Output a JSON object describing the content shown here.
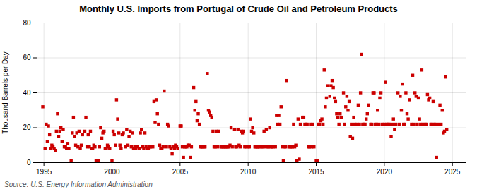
{
  "chart_data": {
    "type": "scatter",
    "title": "Monthly U.S. Imports from Portugal of Crude Oil and Petroleum Products",
    "ylabel": "Thousand Barrels per Day",
    "annotations": [
      "Source: U.S. Energy Information Administration"
    ],
    "color": "#cc0000",
    "marker": "square",
    "grid": true,
    "xlim": [
      1994.5,
      2026.0
    ],
    "ylim": [
      0,
      80
    ],
    "xticks": [
      1995,
      2000,
      2005,
      2010,
      2015,
      2020,
      2025
    ],
    "yticks": [
      0,
      20,
      40,
      60,
      80
    ],
    "x": [
      1994.917,
      1995.083,
      1995.167,
      1995.25,
      1995.333,
      1995.417,
      1995.5,
      1995.583,
      1995.667,
      1995.75,
      1995.833,
      1995.917,
      1996.0,
      1996.083,
      1996.167,
      1996.25,
      1996.333,
      1996.417,
      1996.5,
      1996.583,
      1996.667,
      1996.75,
      1996.833,
      1997.0,
      1997.083,
      1997.167,
      1997.25,
      1997.333,
      1997.417,
      1997.5,
      1997.583,
      1997.667,
      1997.75,
      1997.833,
      1998.0,
      1998.083,
      1998.167,
      1998.25,
      1998.333,
      1998.417,
      1998.5,
      1998.583,
      1998.667,
      1998.75,
      1998.833,
      1999.0,
      1999.083,
      1999.167,
      1999.25,
      1999.333,
      1999.417,
      1999.5,
      1999.583,
      1999.667,
      1999.75,
      1999.833,
      2000.0,
      2000.083,
      2000.167,
      2000.25,
      2000.333,
      2000.417,
      2000.5,
      2000.583,
      2000.667,
      2000.75,
      2000.833,
      2001.0,
      2001.083,
      2001.167,
      2001.25,
      2001.333,
      2001.417,
      2001.5,
      2001.583,
      2001.667,
      2001.75,
      2001.833,
      2002.0,
      2002.083,
      2002.167,
      2002.25,
      2002.333,
      2002.417,
      2002.5,
      2002.583,
      2002.667,
      2002.75,
      2002.833,
      2003.0,
      2003.083,
      2003.167,
      2003.25,
      2003.333,
      2003.417,
      2003.5,
      2003.583,
      2003.667,
      2003.75,
      2003.833,
      2004.0,
      2004.083,
      2004.167,
      2004.25,
      2004.333,
      2004.417,
      2004.5,
      2004.583,
      2004.667,
      2004.75,
      2004.833,
      2005.0,
      2005.083,
      2005.167,
      2005.25,
      2005.333,
      2005.417,
      2005.5,
      2005.583,
      2005.667,
      2005.75,
      2005.833,
      2006.0,
      2006.083,
      2006.167,
      2006.25,
      2006.333,
      2006.417,
      2006.5,
      2006.583,
      2006.667,
      2006.75,
      2006.833,
      2007.0,
      2007.083,
      2007.167,
      2007.25,
      2007.333,
      2007.417,
      2007.5,
      2007.583,
      2007.667,
      2007.75,
      2007.833,
      2008.0,
      2008.083,
      2008.167,
      2008.25,
      2008.333,
      2008.417,
      2008.5,
      2008.583,
      2008.667,
      2008.75,
      2008.833,
      2009.0,
      2009.083,
      2009.167,
      2009.25,
      2009.333,
      2009.417,
      2009.5,
      2009.583,
      2009.667,
      2009.75,
      2009.833,
      2010.0,
      2010.083,
      2010.167,
      2010.25,
      2010.333,
      2010.417,
      2010.5,
      2010.583,
      2010.667,
      2010.75,
      2010.833,
      2011.0,
      2011.083,
      2011.167,
      2011.25,
      2011.333,
      2011.417,
      2011.5,
      2011.583,
      2011.667,
      2011.75,
      2011.833,
      2012.0,
      2012.083,
      2012.167,
      2012.25,
      2012.333,
      2012.417,
      2012.5,
      2012.583,
      2012.667,
      2012.75,
      2012.833,
      2013.0,
      2013.083,
      2013.167,
      2013.25,
      2013.333,
      2013.417,
      2013.5,
      2013.583,
      2013.667,
      2013.75,
      2013.833,
      2014.0,
      2014.083,
      2014.167,
      2014.25,
      2014.333,
      2014.417,
      2014.5,
      2014.583,
      2014.667,
      2014.75,
      2014.833,
      2015.0,
      2015.083,
      2015.167,
      2015.25,
      2015.333,
      2015.417,
      2015.5,
      2015.583,
      2015.667,
      2015.75,
      2015.833,
      2016.0,
      2016.083,
      2016.167,
      2016.25,
      2016.333,
      2016.417,
      2016.5,
      2016.583,
      2016.667,
      2016.75,
      2016.833,
      2017.0,
      2017.083,
      2017.167,
      2017.25,
      2017.333,
      2017.417,
      2017.5,
      2017.583,
      2017.667,
      2017.75,
      2017.833,
      2018.0,
      2018.083,
      2018.167,
      2018.25,
      2018.333,
      2018.417,
      2018.5,
      2018.583,
      2018.667,
      2018.75,
      2018.833,
      2019.0,
      2019.083,
      2019.167,
      2019.25,
      2019.333,
      2019.417,
      2019.5,
      2019.583,
      2019.667,
      2019.75,
      2019.833,
      2020.0,
      2020.083,
      2020.167,
      2020.25,
      2020.333,
      2020.417,
      2020.5,
      2020.583,
      2020.667,
      2020.75,
      2020.833,
      2021.0,
      2021.083,
      2021.167,
      2021.25,
      2021.333,
      2021.417,
      2021.5,
      2021.583,
      2021.667,
      2021.75,
      2021.833,
      2022.0,
      2022.083,
      2022.167,
      2022.25,
      2022.333,
      2022.417,
      2022.5,
      2022.583,
      2022.667,
      2022.75,
      2022.833,
      2023.0,
      2023.083,
      2023.167,
      2023.25,
      2023.333,
      2023.417,
      2023.5,
      2023.583,
      2023.667,
      2023.75,
      2023.833,
      2024.0,
      2024.083,
      2024.167,
      2024.25,
      2024.333,
      2024.417,
      2024.5,
      2024.583
    ],
    "values": [
      32,
      8,
      22,
      12,
      21,
      16,
      8,
      10,
      9,
      8,
      7,
      18,
      28,
      15,
      18,
      20,
      12,
      19,
      9,
      9,
      8,
      11,
      8,
      1,
      17,
      26,
      15,
      10,
      17,
      9,
      18,
      8,
      10,
      16,
      18,
      26,
      9,
      16,
      9,
      18,
      8,
      8,
      10,
      9,
      1,
      1,
      9,
      20,
      14,
      17,
      18,
      8,
      8,
      10,
      9,
      8,
      1,
      18,
      16,
      10,
      36,
      25,
      17,
      10,
      8,
      16,
      17,
      9,
      19,
      10,
      15,
      18,
      9,
      17,
      8,
      9,
      8,
      9,
      8,
      17,
      19,
      9,
      8,
      17,
      9,
      8,
      8,
      9,
      9,
      9,
      35,
      23,
      36,
      28,
      22,
      10,
      8,
      8,
      9,
      41,
      9,
      22,
      21,
      9,
      8,
      5,
      9,
      8,
      10,
      9,
      8,
      21,
      21,
      9,
      3,
      9,
      9,
      9,
      10,
      10,
      3,
      9,
      43,
      30,
      35,
      24,
      28,
      22,
      9,
      9,
      9,
      9,
      9,
      51,
      30,
      29,
      27,
      26,
      18,
      9,
      9,
      18,
      9,
      18,
      9,
      9,
      9,
      9,
      9,
      9,
      9,
      9,
      10,
      20,
      9,
      19,
      9,
      9,
      19,
      10,
      9,
      18,
      17,
      18,
      9,
      9,
      9,
      9,
      25,
      18,
      20,
      17,
      9,
      9,
      9,
      9,
      9,
      9,
      9,
      18,
      9,
      19,
      9,
      9,
      20,
      9,
      9,
      9,
      9,
      27,
      22,
      27,
      22,
      32,
      9,
      1,
      9,
      9,
      47,
      9,
      9,
      9,
      9,
      22,
      9,
      10,
      1,
      25,
      2,
      22,
      26,
      26,
      22,
      22,
      22,
      9,
      9,
      22,
      9,
      22,
      9,
      1,
      1,
      22,
      22,
      24,
      25,
      22,
      53,
      32,
      37,
      44,
      38,
      44,
      47,
      43,
      37,
      35,
      28,
      26,
      22,
      28,
      26,
      40,
      22,
      32,
      38,
      30,
      35,
      15,
      22,
      14,
      26,
      22,
      22,
      33,
      22,
      40,
      62,
      22,
      22,
      22,
      25,
      28,
      33,
      22,
      22,
      40,
      40,
      22,
      22,
      30,
      22,
      37,
      40,
      22,
      22,
      46,
      22,
      22,
      22,
      22,
      15,
      22,
      25,
      19,
      22,
      40,
      22,
      38,
      30,
      45,
      22,
      22,
      40,
      28,
      25,
      36,
      22,
      50,
      22,
      40,
      38,
      22,
      37,
      25,
      22,
      53,
      22,
      22,
      22,
      39,
      36,
      37,
      22,
      22,
      35,
      22,
      22,
      3,
      22,
      33,
      22,
      30,
      17,
      18,
      49,
      19
    ]
  }
}
